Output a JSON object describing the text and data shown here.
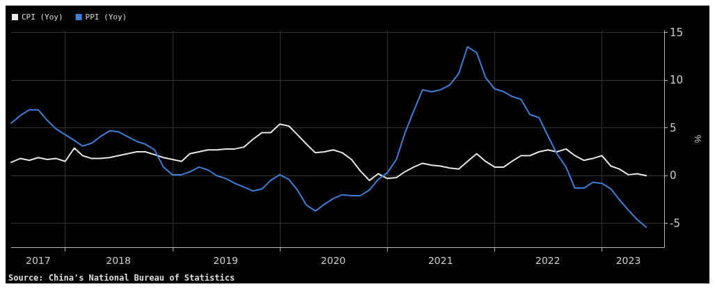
{
  "chart_data": {
    "type": "line",
    "ylabel": "%",
    "annotations": [
      "Source: China's National Bureau of Statistics"
    ],
    "x": [
      "2017-07",
      "2017-08",
      "2017-09",
      "2017-10",
      "2017-11",
      "2017-12",
      "2018-01",
      "2018-02",
      "2018-03",
      "2018-04",
      "2018-05",
      "2018-06",
      "2018-07",
      "2018-08",
      "2018-09",
      "2018-10",
      "2018-11",
      "2018-12",
      "2019-01",
      "2019-02",
      "2019-03",
      "2019-04",
      "2019-05",
      "2019-06",
      "2019-07",
      "2019-08",
      "2019-09",
      "2019-10",
      "2019-11",
      "2019-12",
      "2020-01",
      "2020-02",
      "2020-03",
      "2020-04",
      "2020-05",
      "2020-06",
      "2020-07",
      "2020-08",
      "2020-09",
      "2020-10",
      "2020-11",
      "2020-12",
      "2021-01",
      "2021-02",
      "2021-03",
      "2021-04",
      "2021-05",
      "2021-06",
      "2021-07",
      "2021-08",
      "2021-09",
      "2021-10",
      "2021-11",
      "2021-12",
      "2022-01",
      "2022-02",
      "2022-03",
      "2022-04",
      "2022-05",
      "2022-06",
      "2022-07",
      "2022-08",
      "2022-09",
      "2022-10",
      "2022-11",
      "2022-12",
      "2023-01",
      "2023-02",
      "2023-03",
      "2023-04",
      "2023-05",
      "2023-06"
    ],
    "series": [
      {
        "name": "CPI (Yoy)",
        "color": "#e8e8e8",
        "values": [
          1.4,
          1.8,
          1.6,
          1.9,
          1.7,
          1.8,
          1.5,
          2.9,
          2.1,
          1.8,
          1.8,
          1.9,
          2.1,
          2.3,
          2.5,
          2.5,
          2.2,
          1.9,
          1.7,
          1.5,
          2.3,
          2.5,
          2.7,
          2.7,
          2.8,
          2.8,
          3.0,
          3.8,
          4.5,
          4.5,
          5.4,
          5.2,
          4.3,
          3.3,
          2.4,
          2.5,
          2.7,
          2.4,
          1.7,
          0.5,
          -0.5,
          0.2,
          -0.3,
          -0.2,
          0.4,
          0.9,
          1.3,
          1.1,
          1.0,
          0.8,
          0.7,
          1.5,
          2.3,
          1.5,
          0.9,
          0.9,
          1.5,
          2.1,
          2.1,
          2.5,
          2.7,
          2.5,
          2.8,
          2.1,
          1.6,
          1.8,
          2.1,
          1.0,
          0.7,
          0.1,
          0.2,
          0.0
        ]
      },
      {
        "name": "PPI (Yoy)",
        "color": "#3f7fd8",
        "values": [
          5.5,
          6.3,
          6.9,
          6.9,
          5.8,
          4.9,
          4.3,
          3.7,
          3.1,
          3.4,
          4.1,
          4.7,
          4.6,
          4.1,
          3.6,
          3.3,
          2.7,
          0.9,
          0.1,
          0.1,
          0.4,
          0.9,
          0.6,
          0.0,
          -0.3,
          -0.8,
          -1.2,
          -1.6,
          -1.4,
          -0.5,
          0.1,
          -0.4,
          -1.5,
          -3.1,
          -3.7,
          -3.0,
          -2.4,
          -2.0,
          -2.1,
          -2.1,
          -1.5,
          -0.4,
          0.3,
          1.7,
          4.4,
          6.8,
          9.0,
          8.8,
          9.0,
          9.5,
          10.7,
          13.5,
          12.9,
          10.3,
          9.1,
          8.8,
          8.3,
          8.0,
          6.4,
          6.1,
          4.2,
          2.3,
          0.9,
          -1.3,
          -1.3,
          -0.7,
          -0.8,
          -1.4,
          -2.5,
          -3.6,
          -4.6,
          -5.4
        ]
      }
    ],
    "xlim": [
      "2017-07",
      "2023-08"
    ],
    "xticks": [
      {
        "value": "2017-10",
        "label": "2017"
      },
      {
        "value": "2018-01",
        "label": null
      },
      {
        "value": "2018-07",
        "label": "2018"
      },
      {
        "value": "2019-01",
        "label": null
      },
      {
        "value": "2019-07",
        "label": "2019"
      },
      {
        "value": "2020-01",
        "label": null
      },
      {
        "value": "2020-07",
        "label": "2020"
      },
      {
        "value": "2021-01",
        "label": null
      },
      {
        "value": "2021-07",
        "label": "2021"
      },
      {
        "value": "2022-01",
        "label": null
      },
      {
        "value": "2022-07",
        "label": "2022"
      },
      {
        "value": "2023-01",
        "label": null
      },
      {
        "value": "2023-04",
        "label": "2023"
      }
    ],
    "ylim": [
      -7.5,
      15.2
    ],
    "yticks": [
      -5,
      0,
      5,
      10,
      15
    ],
    "grid": true,
    "legend": "top left",
    "marker": "none",
    "line_style": "solid"
  }
}
